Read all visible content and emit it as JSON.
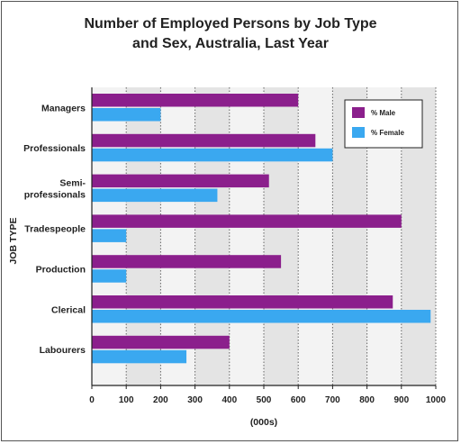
{
  "chart_data": {
    "type": "bar",
    "orientation": "horizontal",
    "title_lines": [
      "Number of Employed Persons by Job Type",
      "and Sex, Australia, Last Year"
    ],
    "xlabel": "(000s)",
    "ylabel": "JOB TYPE",
    "xlim": [
      0,
      1000
    ],
    "xticks": [
      0,
      100,
      200,
      300,
      400,
      500,
      600,
      700,
      800,
      900,
      1000
    ],
    "categories": [
      [
        "Managers"
      ],
      [
        "Professionals"
      ],
      [
        "Semi-",
        "professionals"
      ],
      [
        "Tradespeople"
      ],
      [
        "Production"
      ],
      [
        "Clerical"
      ],
      [
        "Labourers"
      ]
    ],
    "series": [
      {
        "name": "% Male",
        "color": "#8b1f8c",
        "values": [
          600,
          650,
          515,
          900,
          550,
          875,
          400
        ]
      },
      {
        "name": "% Female",
        "color": "#3aa8f0",
        "values": [
          200,
          700,
          365,
          100,
          100,
          985,
          275
        ]
      }
    ],
    "legend_position": "top-right",
    "grid": "vertical-dotted"
  }
}
